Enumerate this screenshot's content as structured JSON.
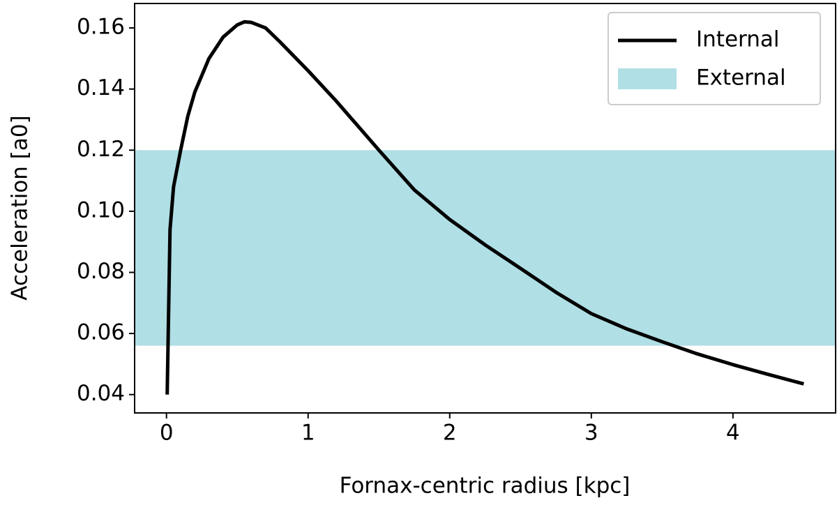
{
  "chart_data": {
    "type": "line",
    "xlabel": "Fornax-centric radius [kpc]",
    "ylabel": "Acceleration [a0]",
    "x": [
      0.005,
      0.025,
      0.05,
      0.1,
      0.15,
      0.2,
      0.3,
      0.4,
      0.5,
      0.55,
      0.6,
      0.7,
      0.8,
      1.0,
      1.2,
      1.5,
      1.75,
      2.0,
      2.25,
      2.5,
      2.75,
      3.0,
      3.25,
      3.5,
      3.75,
      4.0,
      4.25,
      4.5
    ],
    "series": [
      {
        "name": "Internal",
        "color": "#000000",
        "values": [
          0.04,
          0.094,
          0.108,
          0.12,
          0.131,
          0.139,
          0.15,
          0.157,
          0.161,
          0.162,
          0.1618,
          0.16,
          0.1555,
          0.146,
          0.136,
          0.12,
          0.107,
          0.0973,
          0.089,
          0.0813,
          0.0735,
          0.0665,
          0.0615,
          0.0573,
          0.0533,
          0.0498,
          0.0466,
          0.0435
        ]
      }
    ],
    "bands": [
      {
        "name": "External",
        "color": "#b0dfe5",
        "ymin": 0.056,
        "ymax": 0.12
      }
    ],
    "xlim": [
      -0.225,
      4.725
    ],
    "ylim": [
      0.034,
      0.168
    ],
    "xticks": [
      0,
      1,
      2,
      3,
      4
    ],
    "yticks": [
      {
        "value": 0.04,
        "label": "0.04"
      },
      {
        "value": 0.06,
        "label": "0.06"
      },
      {
        "value": 0.08,
        "label": "0.08"
      },
      {
        "value": 0.1,
        "label": "0.10"
      },
      {
        "value": 0.12,
        "label": "0.12"
      },
      {
        "value": 0.14,
        "label": "0.14"
      },
      {
        "value": 0.16,
        "label": "0.16"
      }
    ],
    "legend": "upper right",
    "grid": false
  }
}
